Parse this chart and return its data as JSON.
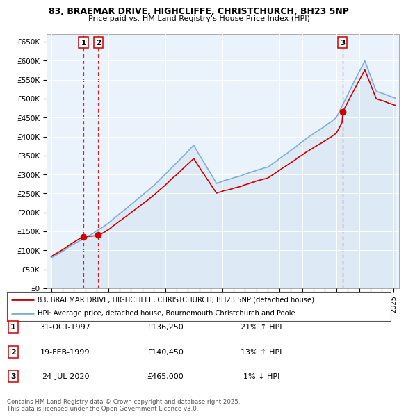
{
  "title_line1": "83, BRAEMAR DRIVE, HIGHCLIFFE, CHRISTCHURCH, BH23 5NP",
  "title_line2": "Price paid vs. HM Land Registry's House Price Index (HPI)",
  "ylabel_ticks": [
    "£0",
    "£50K",
    "£100K",
    "£150K",
    "£200K",
    "£250K",
    "£300K",
    "£350K",
    "£400K",
    "£450K",
    "£500K",
    "£550K",
    "£600K",
    "£650K"
  ],
  "ytick_values": [
    0,
    50000,
    100000,
    150000,
    200000,
    250000,
    300000,
    350000,
    400000,
    450000,
    500000,
    550000,
    600000,
    650000
  ],
  "legend_line1": "83, BRAEMAR DRIVE, HIGHCLIFFE, CHRISTCHURCH, BH23 5NP (detached house)",
  "legend_line2": "HPI: Average price, detached house, Bournemouth Christchurch and Poole",
  "transactions": [
    {
      "num": 1,
      "date": "31-OCT-1997",
      "price": "£136,250",
      "note": "21% ↑ HPI"
    },
    {
      "num": 2,
      "date": "19-FEB-1999",
      "price": "£140,450",
      "note": "13% ↑ HPI"
    },
    {
      "num": 3,
      "date": "24-JUL-2020",
      "price": "£465,000",
      "note": "1% ↓ HPI"
    }
  ],
  "footnote": "Contains HM Land Registry data © Crown copyright and database right 2025.\nThis data is licensed under the Open Government Licence v3.0.",
  "hpi_color": "#7bafd4",
  "hpi_fill_color": "#ddeaf6",
  "price_color": "#cc0000",
  "vline_color": "#cc0000",
  "bg_color": "#ffffff",
  "chart_bg_color": "#eaf2fb",
  "grid_color": "#ffffff",
  "t1": 1997.83,
  "t2": 1999.13,
  "t3": 2020.56,
  "p1": 136250,
  "p2": 140450,
  "p3": 465000
}
